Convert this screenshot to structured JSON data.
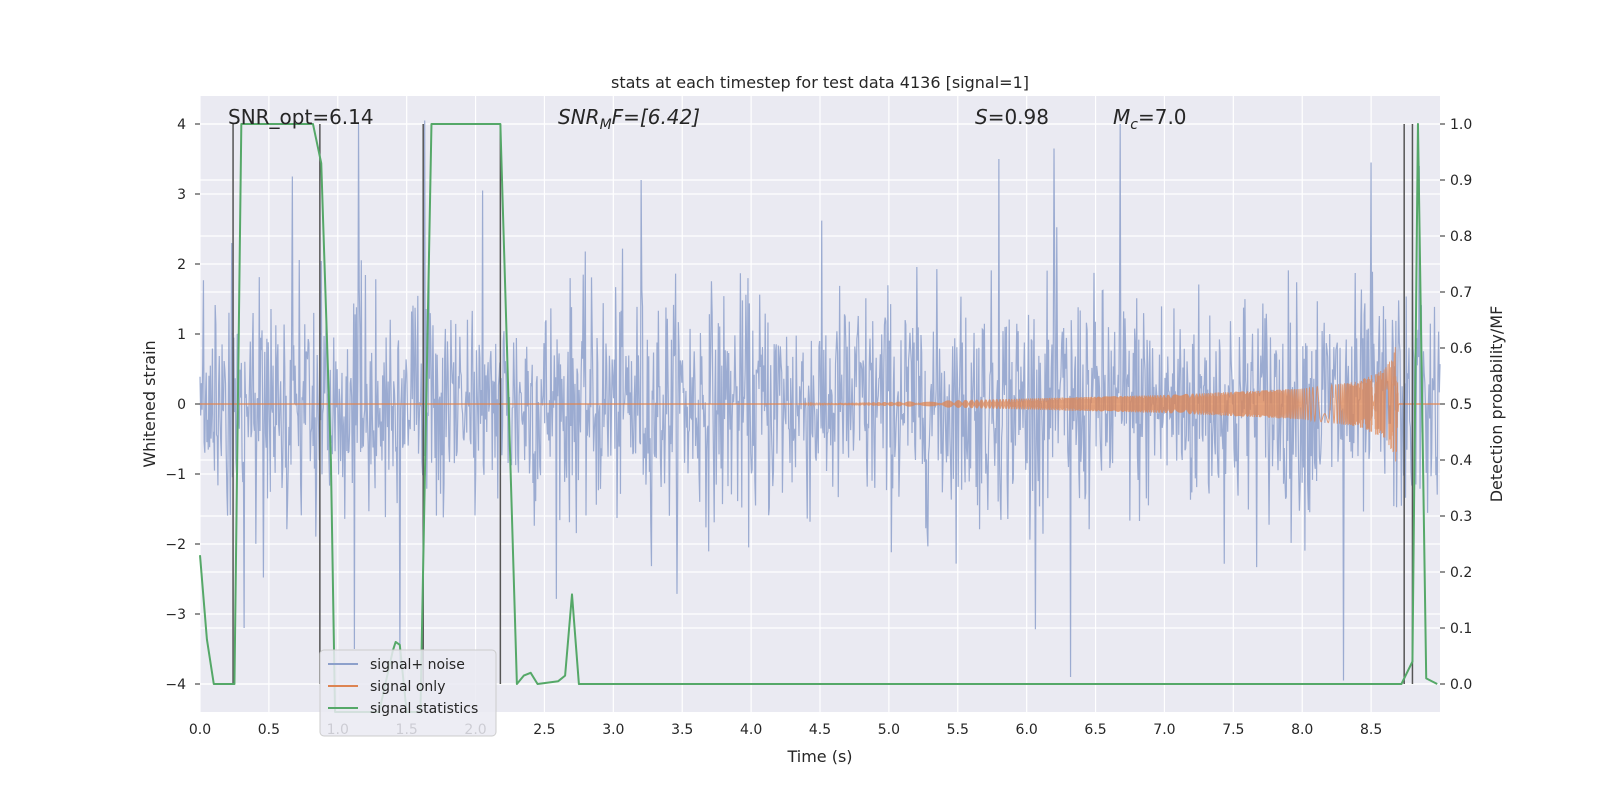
{
  "chart_data": {
    "type": "line",
    "title": "stats at each timestep for test data 4136 [signal=1]",
    "xlabel": "Time (s)",
    "ylabel_left": "Whitened strain",
    "ylabel_right": "Detection probability/MF",
    "xlim": [
      0.0,
      9.0
    ],
    "ylim_left": [
      -4.4,
      4.4
    ],
    "ylim_right": [
      -0.05,
      1.05
    ],
    "xticks": [
      0.0,
      0.5,
      1.0,
      1.5,
      2.0,
      2.5,
      3.0,
      3.5,
      4.0,
      4.5,
      5.0,
      5.5,
      6.0,
      6.5,
      7.0,
      7.5,
      8.0,
      8.5
    ],
    "xtick_labels": [
      "0.0",
      "0.5",
      "1.0",
      "1.5",
      "2.0",
      "2.5",
      "3.0",
      "3.5",
      "4.0",
      "4.5",
      "5.0",
      "5.5",
      "6.0",
      "6.5",
      "7.0",
      "7.5",
      "8.0",
      "8.5"
    ],
    "yticks_left": [
      -4,
      -3,
      -2,
      -1,
      0,
      1,
      2,
      3,
      4
    ],
    "ytick_labels_left": [
      "−4",
      "−3",
      "−2",
      "−1",
      "0",
      "1",
      "2",
      "3",
      "4"
    ],
    "yticks_right": [
      0.0,
      0.1,
      0.2,
      0.3,
      0.4,
      0.5,
      0.6,
      0.7,
      0.8,
      0.9,
      1.0
    ],
    "ytick_labels_right": [
      "0.0",
      "0.1",
      "0.2",
      "0.3",
      "0.4",
      "0.5",
      "0.6",
      "0.7",
      "0.8",
      "0.9",
      "1.0"
    ],
    "grid": true,
    "legend_position": "bottom-left",
    "annotations": {
      "snr_opt": "SNR_opt=6.14",
      "snr_mf_base": "SNR",
      "snr_mf_sub": "M",
      "snr_mf_rest": "F=[6.42]",
      "s_name": "S",
      "s_value": "=0.98",
      "mc_base": "M",
      "mc_sub": "c",
      "mc_value": "=7.0"
    },
    "series": [
      {
        "name": "signal+ noise",
        "color": "#8da0cb",
        "axis": "left",
        "kind": "noise",
        "x_range": [
          0.0,
          9.0
        ],
        "sigma": 0.8,
        "samples": 1800,
        "peak_values": [
          [
            0.23,
            2.3
          ],
          [
            0.32,
            -3.2
          ],
          [
            0.67,
            3.25
          ],
          [
            1.15,
            4.0
          ],
          [
            1.12,
            -3.5
          ],
          [
            1.45,
            -3.75
          ],
          [
            1.63,
            4.05
          ],
          [
            2.05,
            3.05
          ],
          [
            3.2,
            3.2
          ],
          [
            5.8,
            3.5
          ],
          [
            6.2,
            3.65
          ],
          [
            6.32,
            -3.9
          ],
          [
            6.68,
            4.0
          ],
          [
            8.5,
            3.45
          ],
          [
            8.3,
            -3.95
          ],
          [
            8.85,
            3.4
          ]
        ]
      },
      {
        "name": "signal only",
        "color": "#dd8452",
        "axis": "left",
        "kind": "chirp",
        "t_start": 4.3,
        "t_merger": 8.68,
        "envelope": [
          [
            4.3,
            0.0
          ],
          [
            5.0,
            0.03
          ],
          [
            6.0,
            0.08
          ],
          [
            7.0,
            0.13
          ],
          [
            8.0,
            0.22
          ],
          [
            8.4,
            0.32
          ],
          [
            8.6,
            0.5
          ],
          [
            8.66,
            0.7
          ],
          [
            8.68,
            0.85
          ],
          [
            8.7,
            0.0
          ]
        ]
      },
      {
        "name": "signal statistics",
        "color": "#55a868",
        "axis": "right",
        "kind": "line",
        "x": [
          0.0,
          0.05,
          0.1,
          0.25,
          0.3,
          0.82,
          0.88,
          0.95,
          0.98,
          1.3,
          1.4,
          1.42,
          1.45,
          1.5,
          1.6,
          1.68,
          2.18,
          2.3,
          2.35,
          2.4,
          2.45,
          2.6,
          2.65,
          2.7,
          2.75,
          3.0,
          3.2,
          8.72,
          8.8,
          8.84,
          8.9,
          8.98
        ],
        "y": [
          0.23,
          0.08,
          0.0,
          0.0,
          1.0,
          1.0,
          0.93,
          0.4,
          -0.05,
          -0.05,
          0.06,
          0.075,
          0.07,
          -0.05,
          -0.05,
          1.0,
          1.0,
          0.0,
          0.015,
          0.02,
          0.0,
          0.005,
          0.015,
          0.16,
          0.0,
          0.0,
          0.0,
          0.0,
          0.04,
          1.0,
          0.01,
          0.0
        ]
      }
    ],
    "vertical_lines": [
      {
        "x": 0.24,
        "ymin": 0.0,
        "ymax": 1.0
      },
      {
        "x": 0.87,
        "ymin": 0.0,
        "ymax": 1.0
      },
      {
        "x": 1.62,
        "ymin": 0.0,
        "ymax": 1.0
      },
      {
        "x": 2.18,
        "ymin": 0.0,
        "ymax": 1.0
      },
      {
        "x": 8.74,
        "ymin": 0.0,
        "ymax": 1.0
      },
      {
        "x": 8.8,
        "ymin": 0.0,
        "ymax": 1.0
      }
    ],
    "legend": [
      {
        "label": "signal+ noise",
        "color": "#8da0cb"
      },
      {
        "label": "signal only",
        "color": "#dd8452"
      },
      {
        "label": "signal statistics",
        "color": "#55a868"
      }
    ]
  }
}
